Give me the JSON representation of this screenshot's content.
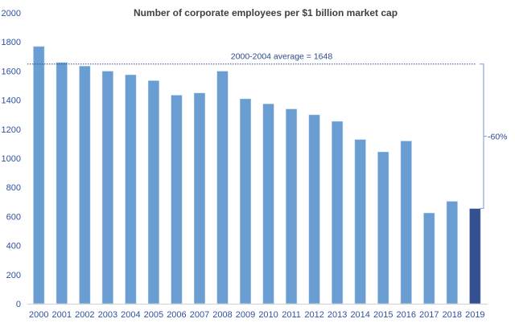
{
  "chart_data": {
    "type": "bar",
    "title": "Number of corporate employees per $1 billion market cap",
    "xlabel": "",
    "ylabel": "",
    "ylim": [
      0,
      2000
    ],
    "yticks": [
      0,
      200,
      400,
      600,
      800,
      1000,
      1200,
      1400,
      1600,
      1800,
      2000
    ],
    "categories": [
      "2000",
      "2001",
      "2002",
      "2003",
      "2004",
      "2005",
      "2006",
      "2007",
      "2008",
      "2009",
      "2010",
      "2011",
      "2012",
      "2013",
      "2014",
      "2015",
      "2016",
      "2017",
      "2018",
      "2019"
    ],
    "values": [
      1770,
      1660,
      1635,
      1600,
      1575,
      1535,
      1435,
      1450,
      1600,
      1410,
      1375,
      1340,
      1300,
      1255,
      1130,
      1045,
      1120,
      625,
      705,
      655
    ],
    "bar_color": "#6a9ed3",
    "highlight_color": "#355090",
    "highlight_index": 19,
    "average_line": {
      "value": 1648,
      "label": "2000-2004 average = 1648"
    },
    "change_annotation": {
      "label": "-60%",
      "from": 1648,
      "to": 655
    }
  }
}
